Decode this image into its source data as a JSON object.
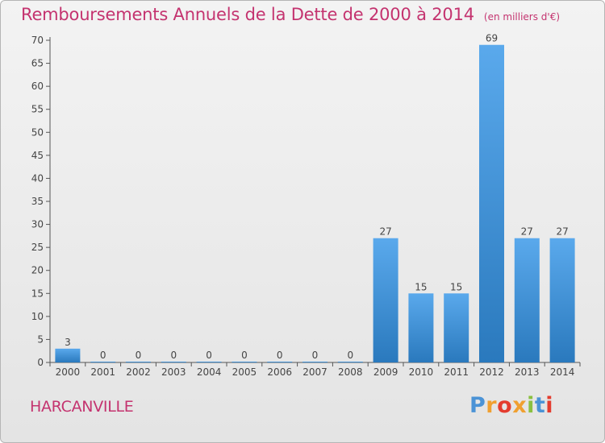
{
  "title": "Remboursements Annuels de la Dette de 2000 à 2014",
  "unit": "(en milliers d'€)",
  "commune": "HARCANVILLE",
  "logo": {
    "text": "Proxiti",
    "letter_colors": [
      "#4b93d6",
      "#f0a030",
      "#e43c2e",
      "#f0a030",
      "#8ac040",
      "#4b93d6",
      "#e43c2e"
    ]
  },
  "colors": {
    "title": "#c4336f",
    "bar_top": "#5aa9ec",
    "bar_bottom": "#2a79bd",
    "axis": "#555555",
    "grid": "#d4d4d4"
  },
  "chart_data": {
    "type": "bar",
    "categories": [
      "2000",
      "2001",
      "2002",
      "2003",
      "2004",
      "2005",
      "2006",
      "2007",
      "2008",
      "2009",
      "2010",
      "2011",
      "2012",
      "2013",
      "2014"
    ],
    "values": [
      3,
      0,
      0,
      0,
      0,
      0,
      0,
      0,
      0,
      27,
      15,
      15,
      69,
      27,
      27
    ],
    "ylim": [
      0,
      70
    ],
    "yticks": [
      0,
      5,
      10,
      15,
      20,
      25,
      30,
      35,
      40,
      45,
      50,
      55,
      60,
      65,
      70
    ],
    "grid": false
  }
}
